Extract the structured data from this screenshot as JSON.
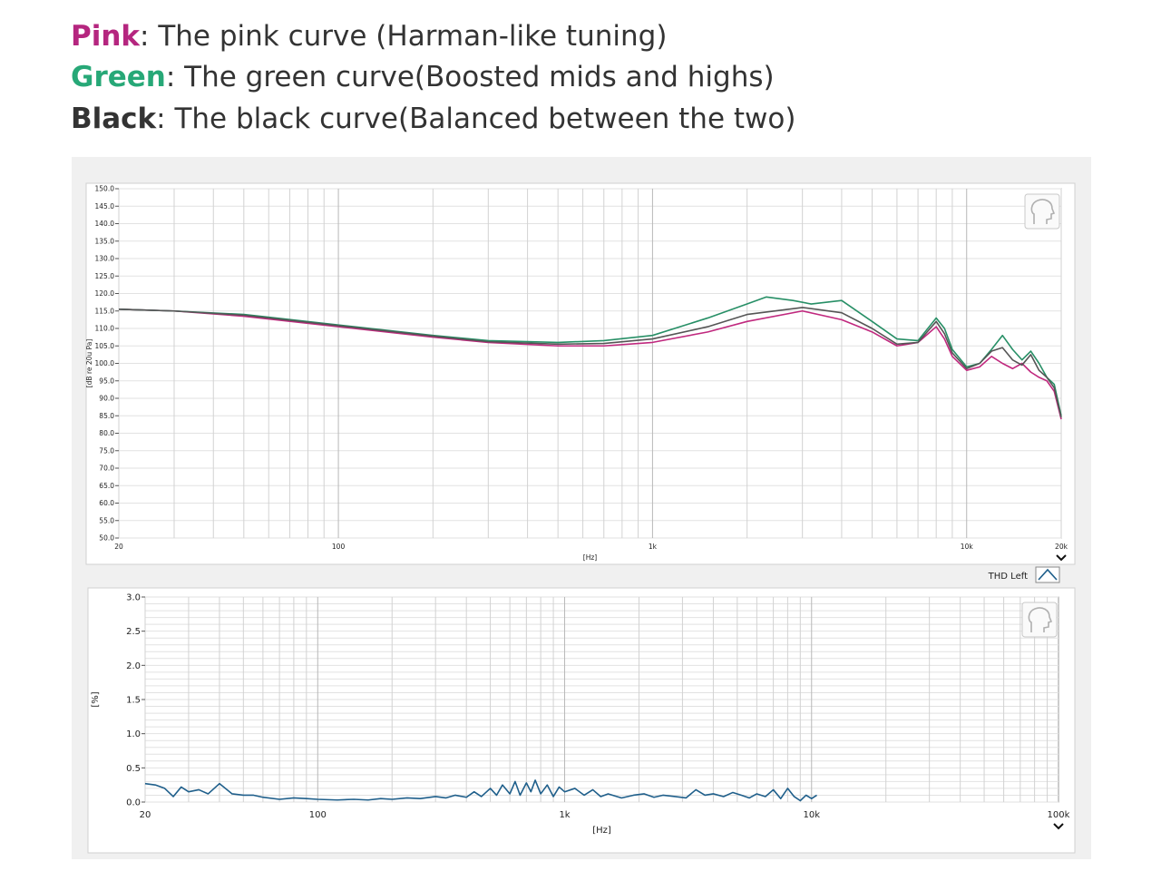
{
  "legend": {
    "pink": {
      "key": "Pink",
      "desc": ": The pink curve (Harman-like tuning)",
      "color": "#b5267f"
    },
    "green": {
      "key": "Green",
      "desc": ": The green curve(Boosted mids and highs)",
      "color": "#27a877"
    },
    "black": {
      "key": "Black",
      "desc": ": The black curve(Balanced between the two)",
      "color": "#333333"
    }
  },
  "icons": [
    "head-icon",
    "chevron-down-icon",
    "thd-wave-icon"
  ],
  "chart_data": [
    {
      "type": "line",
      "title": "",
      "xlabel": "[Hz]",
      "ylabel": "[dB re 20u Pa]",
      "xscale": "log",
      "xlim": [
        20,
        20000
      ],
      "ylim": [
        50,
        150
      ],
      "xticks": [
        "20",
        "100",
        "1k",
        "10k",
        "20k"
      ],
      "yticks": [
        "150.0",
        "145.0",
        "140.0",
        "135.0",
        "130.0",
        "125.0",
        "120.0",
        "115.0",
        "110.0",
        "105.0",
        "100.0",
        "95.0",
        "90.0",
        "85.0",
        "80.0",
        "75.0",
        "70.0",
        "65.0",
        "60.0",
        "55.0",
        "50.0"
      ],
      "grid": true,
      "series": [
        {
          "color": "#c0287e",
          "x": [
            20,
            30,
            50,
            100,
            200,
            300,
            500,
            700,
            1000,
            1500,
            2000,
            3000,
            4000,
            5000,
            6000,
            7000,
            8000,
            8500,
            9000,
            10000,
            11000,
            12000,
            13000,
            14000,
            15000,
            16000,
            17000,
            18000,
            19000,
            20000
          ],
          "y": [
            115.5,
            115,
            113.5,
            110.5,
            107.5,
            106,
            105,
            105,
            106,
            109,
            112,
            115,
            112.5,
            109,
            105,
            106,
            110.5,
            107,
            102,
            98,
            99,
            102,
            100,
            98.5,
            100,
            97.5,
            96,
            95,
            92,
            84
          ]
        },
        {
          "color": "#278f66",
          "x": [
            20,
            30,
            50,
            100,
            200,
            300,
            500,
            700,
            1000,
            1500,
            2000,
            2300,
            2800,
            3200,
            4000,
            5000,
            6000,
            7000,
            8000,
            8500,
            9000,
            10000,
            11000,
            12000,
            13000,
            14000,
            15000,
            16000,
            17000,
            18000,
            19000,
            20000
          ],
          "y": [
            115.5,
            115,
            114,
            111,
            108,
            106.5,
            106,
            106.5,
            108,
            113,
            117,
            119,
            118,
            117,
            118,
            112,
            107,
            106.5,
            113,
            110,
            104,
            99,
            100,
            104,
            108,
            104,
            101,
            103.5,
            100,
            96,
            94,
            85
          ]
        },
        {
          "color": "#555555",
          "x": [
            20,
            30,
            50,
            100,
            200,
            300,
            500,
            700,
            1000,
            1500,
            2000,
            3000,
            4000,
            5000,
            6000,
            7000,
            8000,
            8500,
            9000,
            10000,
            11000,
            12000,
            13000,
            14000,
            15000,
            16000,
            17000,
            18000,
            19000,
            20000
          ],
          "y": [
            115.5,
            115,
            113.8,
            110.8,
            107.8,
            106.2,
            105.5,
            105.7,
            107,
            110.5,
            114,
            116,
            114.5,
            110,
            105.5,
            106,
            112,
            108.5,
            103,
            98.5,
            100,
            103.5,
            104.5,
            101,
            99.5,
            102.5,
            98,
            96,
            93,
            84.5
          ]
        }
      ]
    },
    {
      "type": "line",
      "title": "",
      "xlabel": "[Hz]",
      "ylabel": "[%]",
      "xscale": "log",
      "xlim": [
        20,
        100000
      ],
      "ylim": [
        0,
        3
      ],
      "xticks": [
        "20",
        "100",
        "1k",
        "10k",
        "100k"
      ],
      "yticks": [
        "3.0",
        "2.5",
        "2.0",
        "1.5",
        "1.0",
        "0.5",
        "0.0"
      ],
      "legend": "THD Left",
      "grid": true,
      "series": [
        {
          "name": "THD Left",
          "color": "#1f5f8b",
          "x": [
            20,
            22,
            24,
            26,
            28,
            30,
            33,
            36,
            40,
            45,
            50,
            55,
            60,
            70,
            80,
            90,
            100,
            120,
            140,
            160,
            180,
            200,
            230,
            260,
            300,
            330,
            360,
            400,
            430,
            460,
            500,
            530,
            560,
            600,
            630,
            660,
            700,
            730,
            760,
            800,
            850,
            900,
            950,
            1000,
            1100,
            1200,
            1300,
            1400,
            1500,
            1700,
            1900,
            2100,
            2300,
            2500,
            2800,
            3100,
            3400,
            3700,
            4000,
            4400,
            4800,
            5200,
            5600,
            6000,
            6500,
            7000,
            7500,
            8000,
            8500,
            9000,
            9500,
            10000,
            10500
          ],
          "y": [
            0.27,
            0.25,
            0.2,
            0.08,
            0.22,
            0.15,
            0.18,
            0.12,
            0.27,
            0.12,
            0.1,
            0.1,
            0.07,
            0.04,
            0.06,
            0.05,
            0.04,
            0.03,
            0.04,
            0.03,
            0.05,
            0.04,
            0.06,
            0.05,
            0.08,
            0.06,
            0.1,
            0.07,
            0.15,
            0.08,
            0.2,
            0.1,
            0.25,
            0.12,
            0.3,
            0.1,
            0.28,
            0.15,
            0.32,
            0.12,
            0.25,
            0.08,
            0.22,
            0.15,
            0.2,
            0.1,
            0.18,
            0.08,
            0.12,
            0.06,
            0.1,
            0.12,
            0.07,
            0.1,
            0.08,
            0.06,
            0.18,
            0.1,
            0.12,
            0.08,
            0.14,
            0.1,
            0.06,
            0.12,
            0.08,
            0.18,
            0.05,
            0.2,
            0.08,
            0.02,
            0.1,
            0.05,
            0.1
          ]
        }
      ]
    }
  ]
}
